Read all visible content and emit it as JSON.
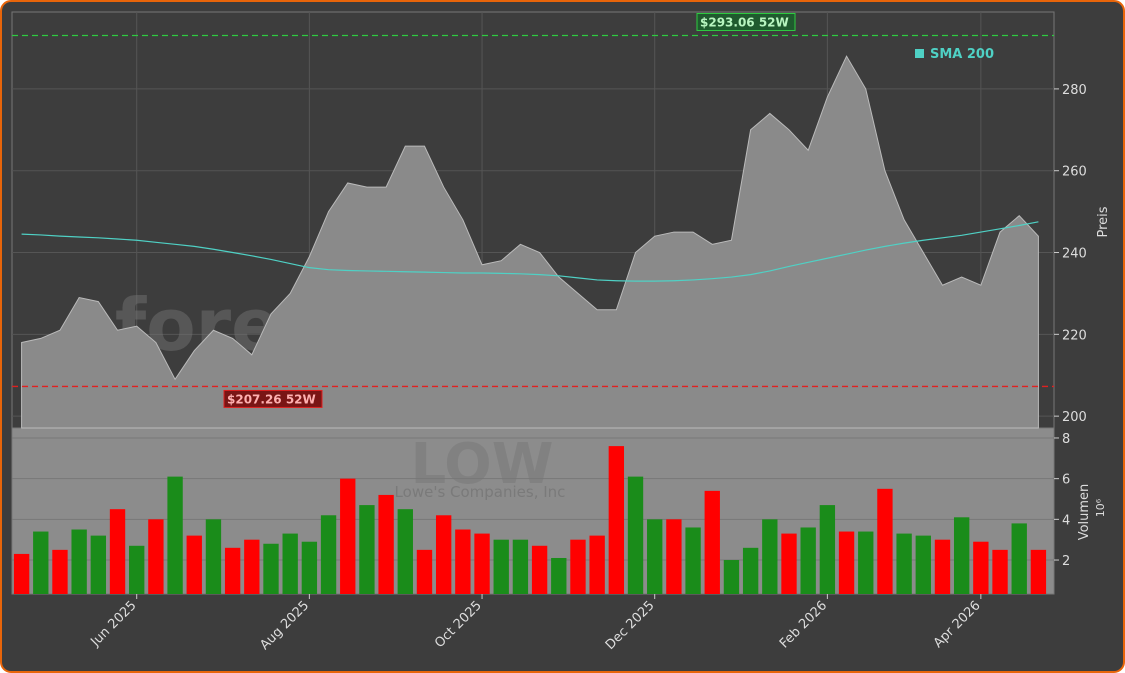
{
  "chart_data": [
    {
      "type": "area",
      "watermark": "forexsignale.trade",
      "y_label": "Preis",
      "series": [
        {
          "name": "LOW",
          "color": "#8a8a8a",
          "values": [
            218,
            219,
            221,
            229,
            228,
            221,
            222,
            218,
            209,
            216,
            221,
            219,
            215,
            225,
            230,
            239,
            250,
            257,
            256,
            256,
            266,
            266,
            256,
            248,
            237,
            238,
            242,
            240,
            234,
            230,
            226,
            226,
            240,
            244,
            245,
            245,
            242,
            243,
            270,
            274,
            270,
            265,
            278,
            288,
            280,
            260,
            248,
            240,
            232,
            234,
            232,
            245,
            249,
            244
          ]
        },
        {
          "name": "SMA 200",
          "color": "#4fd1c5",
          "values": [
            244.5,
            244.3,
            244,
            243.8,
            243.6,
            243.3,
            243,
            242.5,
            242,
            241.5,
            240.8,
            240,
            239.2,
            238.3,
            237.3,
            236.3,
            235.8,
            235.6,
            235.5,
            235.4,
            235.3,
            235.2,
            235.1,
            235,
            235,
            234.9,
            234.8,
            234.6,
            234.3,
            233.8,
            233.3,
            233.1,
            233,
            233,
            233.1,
            233.3,
            233.6,
            234,
            234.6,
            235.5,
            236.6,
            237.6,
            238.6,
            239.6,
            240.6,
            241.5,
            242.3,
            243,
            243.6,
            244.2,
            245,
            245.8,
            246.6,
            247.5
          ]
        }
      ],
      "annotations": [
        {
          "label": "$293.06 52W",
          "value": 293.06,
          "color": "#2ecc40"
        },
        {
          "label": "$207.26 52W",
          "value": 207.26,
          "color": "#e02020"
        }
      ],
      "ylim": [
        197.1,
        298.8
      ],
      "yticks": [
        200,
        220,
        240,
        260,
        280
      ],
      "grid": true,
      "legend": "upper right"
    },
    {
      "type": "bar",
      "watermark": "LOW",
      "subtitle": "Lowe's Companies, Inc",
      "y_label": "Volumen",
      "y_unit": "10⁶",
      "categories": [
        null,
        null,
        null,
        null,
        null,
        null,
        "Jun 2025",
        null,
        null,
        null,
        null,
        null,
        null,
        null,
        null,
        "Aug 2025",
        null,
        null,
        null,
        null,
        null,
        null,
        null,
        null,
        "Oct 2025",
        null,
        null,
        null,
        null,
        null,
        null,
        null,
        null,
        "Dec 2025",
        null,
        null,
        null,
        null,
        null,
        null,
        null,
        null,
        "Feb 2026",
        null,
        null,
        null,
        null,
        null,
        null,
        null,
        "Apr 2026",
        null,
        null,
        null
      ],
      "values": [
        2.3,
        3.4,
        2.5,
        3.5,
        3.2,
        4.5,
        2.7,
        4.0,
        6.1,
        3.2,
        4.0,
        2.6,
        3.0,
        2.8,
        3.3,
        2.9,
        4.2,
        6.0,
        4.7,
        5.2,
        4.5,
        2.5,
        4.2,
        3.5,
        3.3,
        3.0,
        3.0,
        2.7,
        2.1,
        3.0,
        3.2,
        7.6,
        6.1,
        4.0,
        4.0,
        3.6,
        5.4,
        2.0,
        2.6,
        4.0,
        3.3,
        3.6,
        4.7,
        3.4,
        3.4,
        5.5,
        3.3,
        3.2,
        3.0,
        4.1,
        2.9,
        2.5,
        3.8,
        2.5
      ],
      "colors": [
        "#ff0000",
        "#1a8c1a",
        "#ff0000",
        "#1a8c1a",
        "#1a8c1a",
        "#ff0000",
        "#1a8c1a",
        "#ff0000",
        "#1a8c1a",
        "#ff0000",
        "#1a8c1a",
        "#ff0000",
        "#ff0000",
        "#1a8c1a",
        "#1a8c1a",
        "#1a8c1a",
        "#1a8c1a",
        "#ff0000",
        "#1a8c1a",
        "#ff0000",
        "#1a8c1a",
        "#ff0000",
        "#ff0000",
        "#ff0000",
        "#ff0000",
        "#1a8c1a",
        "#1a8c1a",
        "#ff0000",
        "#1a8c1a",
        "#ff0000",
        "#ff0000",
        "#ff0000",
        "#1a8c1a",
        "#1a8c1a",
        "#ff0000",
        "#1a8c1a",
        "#ff0000",
        "#1a8c1a",
        "#1a8c1a",
        "#1a8c1a",
        "#ff0000",
        "#1a8c1a",
        "#1a8c1a",
        "#ff0000",
        "#1a8c1a",
        "#ff0000",
        "#1a8c1a",
        "#1a8c1a",
        "#ff0000",
        "#1a8c1a",
        "#ff0000",
        "#ff0000",
        "#1a8c1a",
        "#ff0000"
      ],
      "ylim": [
        0.33,
        8.49
      ],
      "yticks": [
        2,
        4,
        6,
        8
      ]
    }
  ]
}
